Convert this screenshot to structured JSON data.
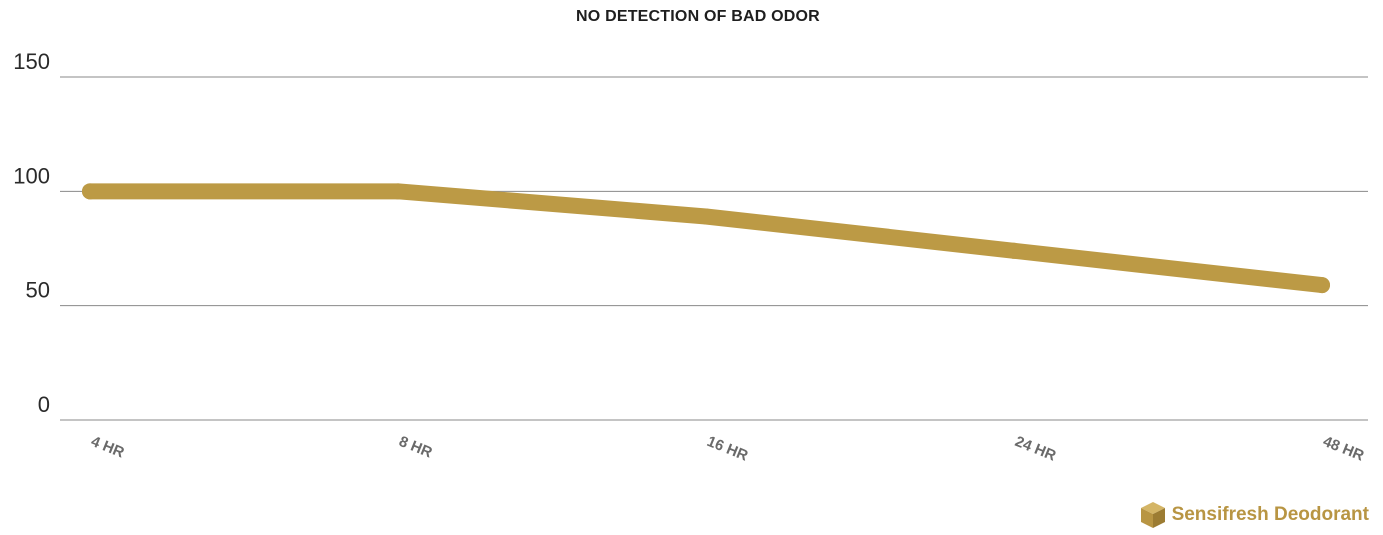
{
  "title": "NO DETECTION OF BAD ODOR",
  "brand": {
    "name": "Sensifresh Deodorant",
    "icon": "cube-logo-icon",
    "color": "#b89543"
  },
  "colors": {
    "line": "#bc9a45",
    "grid": "#8a8a8a"
  },
  "chart_data": {
    "type": "line",
    "title": "NO DETECTION OF BAD ODOR",
    "categories": [
      "4 HR",
      "8 HR",
      "16 HR",
      "24 HR",
      "48 HR"
    ],
    "series": [
      {
        "values": [
          100,
          100,
          89,
          74,
          59
        ]
      }
    ],
    "y_ticks": [
      0,
      50,
      100,
      150
    ],
    "ylim": [
      0,
      150
    ],
    "xlabel": "",
    "ylabel": "",
    "grid": true,
    "legend": "none"
  }
}
